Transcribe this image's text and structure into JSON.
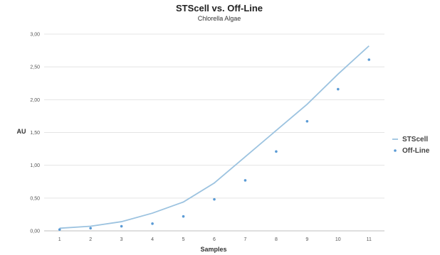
{
  "chart_data": {
    "type": "line",
    "title": "STScell vs. Off-Line",
    "subtitle": "Chlorella Algae",
    "xlabel": "Samples",
    "ylabel": "AU",
    "categories": [
      "1",
      "2",
      "3",
      "4",
      "5",
      "6",
      "7",
      "8",
      "9",
      "10",
      "11"
    ],
    "y_ticks": [
      "0,00",
      "0,50",
      "1,00",
      "1,50",
      "2,00",
      "2,50",
      "3,00"
    ],
    "ylim": [
      0,
      3
    ],
    "grid": true,
    "legend_position": "right",
    "series": [
      {
        "name": "STScell",
        "style": "line",
        "color": "#9cc3e0",
        "values": [
          0.04,
          0.07,
          0.14,
          0.27,
          0.44,
          0.73,
          1.13,
          1.53,
          1.93,
          2.39,
          2.82
        ]
      },
      {
        "name": "Off-Line",
        "style": "markers",
        "color": "#5b9bd5",
        "values": [
          0.02,
          0.04,
          0.07,
          0.11,
          0.22,
          0.48,
          0.77,
          1.21,
          1.67,
          2.16,
          2.61
        ]
      }
    ]
  }
}
